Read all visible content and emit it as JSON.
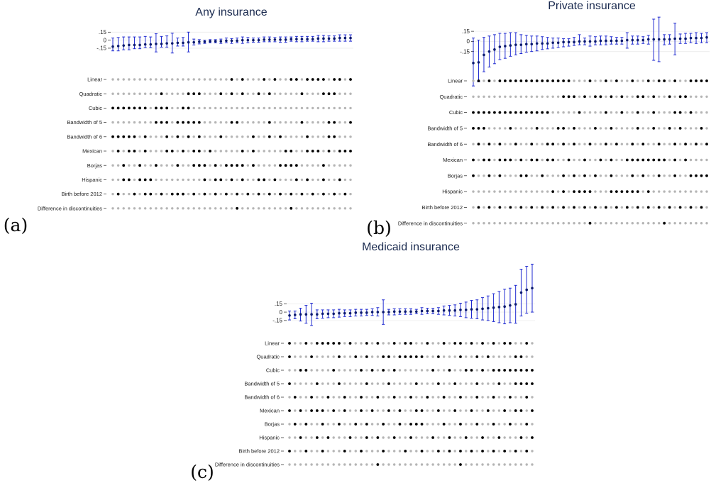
{
  "chart_data": [
    {
      "type": "specification-curve",
      "panel": "(a)",
      "title": "Any insurance",
      "y_ticks": [
        ".15",
        "0",
        "-.15"
      ],
      "y_tick_values": [
        0.15,
        0,
        -0.15
      ],
      "ylim": [
        -0.27,
        0.26
      ],
      "rows": [
        "Linear",
        "Quadratic",
        "Cubic",
        "Bandwidth of 5",
        "Bandwidth of 6",
        "Mexican",
        "Borjas",
        "Hispanic",
        "Birth before 2012",
        "Difference in discontinuities"
      ],
      "estimates": [
        -0.12,
        -0.11,
        -0.1,
        -0.09,
        -0.09,
        -0.09,
        -0.08,
        -0.08,
        -0.07,
        -0.07,
        -0.06,
        -0.06,
        -0.05,
        -0.05,
        -0.04,
        -0.04,
        -0.03,
        -0.03,
        -0.02,
        -0.02,
        -0.02,
        -0.01,
        -0.01,
        -0.01,
        0.0,
        0.0,
        0.0,
        0.0,
        0.01,
        0.01,
        0.01,
        0.01,
        0.01,
        0.02,
        0.02,
        0.02,
        0.02,
        0.02,
        0.03,
        0.03,
        0.03,
        0.03,
        0.04,
        0.04,
        0.04
      ],
      "ci_low": [
        -0.2,
        -0.2,
        -0.18,
        -0.18,
        -0.16,
        -0.16,
        -0.14,
        -0.14,
        -0.22,
        -0.13,
        -0.13,
        -0.24,
        -0.11,
        -0.11,
        -0.22,
        -0.09,
        -0.07,
        -0.06,
        -0.05,
        -0.05,
        -0.06,
        -0.05,
        -0.06,
        -0.05,
        -0.06,
        -0.05,
        -0.04,
        -0.04,
        -0.03,
        -0.03,
        -0.03,
        -0.04,
        -0.04,
        -0.02,
        -0.03,
        -0.03,
        -0.02,
        -0.02,
        -0.03,
        -0.03,
        -0.02,
        -0.02,
        -0.02,
        -0.02,
        -0.02
      ],
      "ci_high": [
        0.04,
        0.05,
        0.06,
        0.06,
        0.06,
        0.06,
        0.07,
        0.06,
        0.12,
        0.07,
        0.08,
        0.13,
        0.04,
        0.05,
        0.15,
        0.02,
        0.01,
        0.0,
        0.01,
        0.01,
        0.02,
        0.04,
        0.03,
        0.04,
        0.06,
        0.05,
        0.04,
        0.04,
        0.06,
        0.06,
        0.05,
        0.06,
        0.06,
        0.06,
        0.07,
        0.07,
        0.07,
        0.07,
        0.09,
        0.09,
        0.08,
        0.08,
        0.1,
        0.1,
        0.1
      ],
      "indicators": {
        "Linear": [
          22,
          24,
          28,
          30,
          33,
          34,
          36,
          37,
          38,
          39,
          41,
          42,
          44
        ],
        "Quadratic": [
          9,
          14,
          15,
          16,
          20,
          22,
          24,
          27,
          29,
          35,
          39,
          40,
          41
        ],
        "Cubic": [
          0,
          1,
          2,
          3,
          4,
          5,
          6,
          8,
          9,
          10,
          13,
          14
        ],
        "Bandwidth of 5": [
          8,
          9,
          10,
          12,
          13,
          14,
          15,
          16,
          22,
          23,
          29,
          35,
          40,
          41,
          44
        ],
        "Bandwidth of 6": [
          0,
          1,
          2,
          3,
          4,
          6,
          10,
          12,
          14,
          16,
          20,
          26,
          29,
          31,
          36,
          40,
          41
        ],
        "Mexican": [
          1,
          3,
          4,
          6,
          10,
          11,
          13,
          15,
          16,
          18,
          24,
          26,
          32,
          33,
          36,
          37,
          38,
          40,
          42,
          43,
          44
        ],
        "Borjas": [
          2,
          5,
          8,
          12,
          15,
          16,
          17,
          19,
          21,
          22,
          23,
          24,
          26,
          31,
          32,
          33,
          34,
          39
        ],
        "Hispanic": [
          2,
          3,
          5,
          6,
          7,
          17,
          19,
          20,
          22,
          24,
          27,
          28,
          30,
          34,
          36,
          39,
          42
        ],
        "Birth before 2012": [
          1,
          4,
          6,
          7,
          9,
          11,
          12,
          13,
          15,
          17,
          19,
          21,
          23,
          25,
          27,
          29,
          31,
          33,
          35,
          37,
          39,
          41,
          43
        ],
        "Difference in discontinuities": [
          23,
          33
        ]
      }
    },
    {
      "type": "specification-curve",
      "panel": "(b)",
      "title": "Private insurance",
      "y_ticks": [
        ".15",
        "0",
        "-.15"
      ],
      "y_tick_values": [
        0.15,
        0,
        -0.15
      ],
      "ylim": [
        -0.7,
        0.33
      ],
      "rows": [
        "Linear",
        "Quadratic",
        "Cubic",
        "Bandwidth of 5",
        "Bandwidth of 6",
        "Mexican",
        "Borjas",
        "Hispanic",
        "Birth before 2012",
        "Difference in discontinuities"
      ],
      "estimates": [
        -0.32,
        -0.31,
        -0.2,
        -0.15,
        -0.12,
        -0.08,
        -0.07,
        -0.06,
        -0.05,
        -0.05,
        -0.04,
        -0.04,
        -0.03,
        -0.03,
        -0.03,
        -0.02,
        -0.02,
        -0.01,
        -0.01,
        -0.01,
        0.0,
        0.0,
        0.0,
        0.0,
        0.01,
        0.01,
        0.01,
        0.01,
        0.01,
        0.02,
        0.02,
        0.02,
        0.02,
        0.03,
        0.03,
        0.03,
        0.03,
        0.03,
        0.04,
        0.04,
        0.04,
        0.05,
        0.05,
        0.05,
        0.06
      ],
      "ci_low": [
        -0.66,
        -0.6,
        -0.45,
        -0.38,
        -0.33,
        -0.27,
        -0.25,
        -0.22,
        -0.2,
        -0.18,
        -0.16,
        -0.15,
        -0.14,
        -0.12,
        -0.11,
        -0.1,
        -0.09,
        -0.08,
        -0.07,
        -0.06,
        -0.05,
        -0.05,
        -0.07,
        -0.05,
        -0.05,
        -0.05,
        -0.04,
        -0.04,
        -0.04,
        -0.1,
        -0.04,
        -0.04,
        -0.03,
        -0.04,
        -0.28,
        -0.3,
        -0.05,
        -0.04,
        -0.2,
        -0.03,
        -0.03,
        -0.02,
        -0.03,
        -0.02,
        -0.02
      ],
      "ci_high": [
        0.05,
        0.02,
        0.06,
        0.08,
        0.1,
        0.12,
        0.12,
        0.13,
        0.13,
        0.1,
        0.09,
        0.08,
        0.08,
        0.07,
        0.06,
        0.05,
        0.05,
        0.04,
        0.04,
        0.06,
        0.1,
        0.05,
        0.08,
        0.07,
        0.08,
        0.08,
        0.07,
        0.06,
        0.06,
        0.13,
        0.08,
        0.08,
        0.07,
        0.09,
        0.33,
        0.36,
        0.1,
        0.1,
        0.27,
        0.11,
        0.12,
        0.12,
        0.13,
        0.12,
        0.13
      ],
      "indicators": {
        "Linear": [
          1,
          3,
          5,
          6,
          7,
          8,
          9,
          10,
          11,
          12,
          13,
          14,
          15,
          16,
          17,
          18,
          22,
          25,
          27,
          30,
          33,
          35,
          36,
          38,
          41,
          42,
          43,
          44
        ],
        "Quadratic": [
          17,
          18,
          19,
          21,
          23,
          24,
          26,
          28,
          31,
          32,
          34,
          37,
          39,
          40
        ],
        "Cubic": [
          0,
          1,
          2,
          3,
          4,
          5,
          6,
          7,
          8,
          9,
          10,
          11,
          12,
          13,
          14,
          20,
          25,
          28,
          31,
          34,
          38,
          39,
          41
        ],
        "Bandwidth of 5": [
          0,
          1,
          2,
          7,
          12,
          16,
          17,
          19,
          23,
          26,
          31,
          34,
          37,
          39,
          43
        ],
        "Bandwidth of 6": [
          1,
          3,
          5,
          8,
          11,
          14,
          15,
          17,
          19,
          22,
          25,
          27,
          30,
          32,
          35,
          38,
          40,
          42,
          44
        ],
        "Mexican": [
          0,
          2,
          3,
          5,
          6,
          7,
          9,
          11,
          12,
          14,
          15,
          18,
          21,
          24,
          26,
          29,
          30,
          31,
          32,
          33,
          34,
          35,
          36,
          38,
          40
        ],
        "Borjas": [
          0,
          3,
          5,
          9,
          10,
          13,
          17,
          19,
          21,
          23,
          26,
          30,
          32,
          35,
          38,
          41,
          42,
          43,
          44
        ],
        "Hispanic": [
          15,
          17,
          19,
          20,
          21,
          22,
          26,
          27,
          28,
          29,
          30,
          31,
          33
        ],
        "Birth before 2012": [
          1,
          3,
          5,
          7,
          9,
          11,
          13,
          15,
          17,
          19,
          21,
          23,
          25,
          27,
          29,
          31,
          33,
          35,
          37,
          39,
          41,
          43
        ],
        "Difference in discontinuities": [
          22,
          36
        ]
      }
    },
    {
      "type": "specification-curve",
      "panel": "(c)",
      "title": "Medicaid insurance",
      "y_ticks": [
        ".15",
        "0",
        "-.15"
      ],
      "y_tick_values": [
        0.15,
        0,
        -0.15
      ],
      "ylim": [
        -0.33,
        0.98
      ],
      "rows": [
        "Linear",
        "Quadratic",
        "Cubic",
        "Bandwidth of 5",
        "Bandwidth of 6",
        "Mexican",
        "Borjas",
        "Hispanic",
        "Birth before 2012",
        "Difference in discontinuities"
      ],
      "estimates": [
        -0.06,
        -0.05,
        -0.04,
        -0.04,
        -0.04,
        -0.04,
        -0.03,
        -0.03,
        -0.03,
        -0.02,
        -0.02,
        -0.02,
        -0.01,
        -0.01,
        -0.01,
        0.0,
        0.0,
        0.0,
        0.0,
        0.01,
        0.01,
        0.01,
        0.01,
        0.01,
        0.02,
        0.02,
        0.02,
        0.02,
        0.03,
        0.03,
        0.03,
        0.04,
        0.04,
        0.05,
        0.05,
        0.06,
        0.07,
        0.08,
        0.09,
        0.1,
        0.12,
        0.14,
        0.35,
        0.4,
        0.43
      ],
      "ci_low": [
        -0.14,
        -0.12,
        -0.16,
        -0.2,
        -0.24,
        -0.12,
        -0.11,
        -0.1,
        -0.1,
        -0.09,
        -0.08,
        -0.08,
        -0.07,
        -0.07,
        -0.06,
        -0.06,
        -0.07,
        -0.22,
        -0.05,
        -0.05,
        -0.04,
        -0.04,
        -0.04,
        -0.03,
        -0.04,
        -0.03,
        -0.03,
        -0.04,
        -0.05,
        -0.06,
        -0.07,
        -0.08,
        -0.1,
        -0.11,
        -0.12,
        -0.14,
        -0.15,
        -0.17,
        -0.19,
        -0.21,
        -0.19,
        -0.2,
        -0.07,
        -0.02,
        0.0
      ],
      "ci_high": [
        0.02,
        0.02,
        0.07,
        0.12,
        0.16,
        0.04,
        0.04,
        0.04,
        0.04,
        0.05,
        0.04,
        0.04,
        0.05,
        0.05,
        0.05,
        0.06,
        0.08,
        0.22,
        0.05,
        0.06,
        0.06,
        0.06,
        0.06,
        0.05,
        0.08,
        0.07,
        0.07,
        0.08,
        0.11,
        0.12,
        0.13,
        0.16,
        0.18,
        0.21,
        0.22,
        0.26,
        0.29,
        0.33,
        0.37,
        0.41,
        0.43,
        0.48,
        0.77,
        0.82,
        0.86
      ],
      "indicators": {
        "Linear": [
          0,
          3,
          5,
          6,
          7,
          8,
          9,
          11,
          14,
          16,
          19,
          21,
          22,
          25,
          28,
          30,
          31,
          33,
          35,
          37,
          39,
          40,
          43
        ],
        "Quadratic": [
          0,
          4,
          9,
          12,
          14,
          17,
          18,
          20,
          21,
          22,
          23,
          24,
          27,
          31,
          34,
          36,
          41,
          42
        ],
        "Cubic": [
          2,
          3,
          8,
          13,
          15,
          17,
          19,
          26,
          29,
          32,
          33,
          35,
          37,
          38,
          39,
          40,
          41,
          42,
          43,
          44
        ],
        "Bandwidth of 5": [
          0,
          5,
          9,
          14,
          18,
          23,
          27,
          30,
          34,
          38,
          41,
          42,
          43,
          44
        ],
        "Bandwidth of 6": [
          1,
          4,
          7,
          10,
          13,
          16,
          19,
          22,
          25,
          28,
          31,
          34,
          37,
          40,
          43
        ],
        "Mexican": [
          0,
          2,
          4,
          5,
          6,
          8,
          10,
          13,
          15,
          18,
          20,
          23,
          24,
          27,
          30,
          33,
          36,
          39,
          41,
          42,
          44
        ],
        "Borjas": [
          1,
          3,
          6,
          9,
          12,
          14,
          17,
          20,
          22,
          23,
          24,
          28,
          31,
          34,
          37,
          40,
          43
        ],
        "Hispanic": [
          2,
          5,
          7,
          11,
          14,
          16,
          19,
          22,
          26,
          29,
          32,
          35,
          38,
          42,
          44
        ],
        "Birth before 2012": [
          0,
          3,
          6,
          10,
          13,
          17,
          21,
          24,
          27,
          29,
          31,
          33,
          35,
          37,
          39,
          41,
          43
        ],
        "Difference in discontinuities": [
          16,
          31
        ]
      }
    }
  ]
}
